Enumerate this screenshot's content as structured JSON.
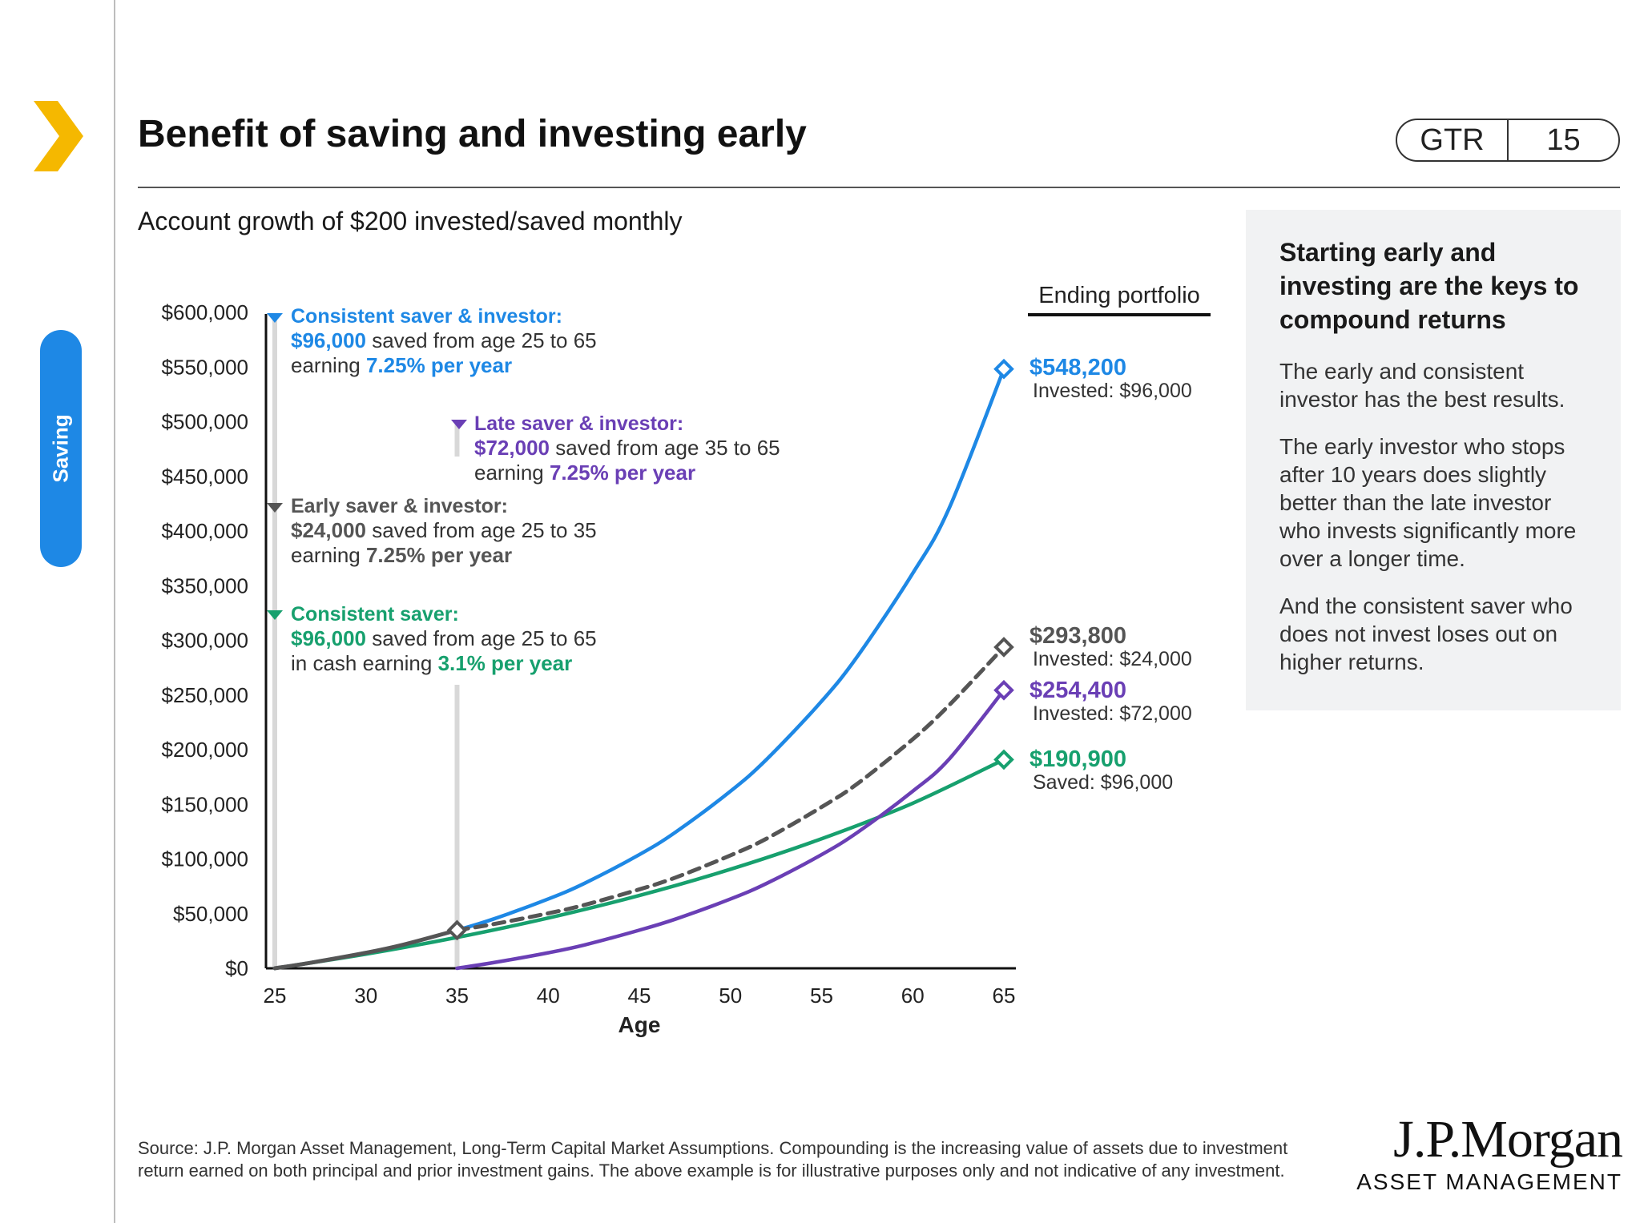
{
  "header": {
    "title": "Benefit of saving and investing early",
    "badge_left": "GTR",
    "badge_right": "15",
    "side_tab": "Saving"
  },
  "colors": {
    "blue": "#1e88e5",
    "gray": "#555555",
    "purple": "#6a3fb5",
    "green": "#17a06e",
    "brand_yellow": "#f5b800"
  },
  "chart_data": {
    "type": "line",
    "title": "Account growth of $200 invested/saved monthly",
    "xlabel": "Age",
    "ylabel": "",
    "xlim": [
      25,
      65
    ],
    "ylim": [
      0,
      600000
    ],
    "x_ticks": [
      "25",
      "30",
      "35",
      "40",
      "45",
      "50",
      "55",
      "60",
      "65"
    ],
    "y_ticks": [
      "$0",
      "$50,000",
      "$100,000",
      "$150,000",
      "$200,000",
      "$250,000",
      "$300,000",
      "$350,000",
      "$400,000",
      "$450,000",
      "$500,000",
      "$550,000",
      "$600,000"
    ],
    "ending_portfolio_header": "Ending portfolio",
    "series": [
      {
        "key": "blue",
        "dashed": false,
        "x": [
          25,
          27,
          30,
          32,
          35,
          37,
          40,
          42,
          45,
          47,
          50,
          52,
          55,
          57,
          60,
          62,
          65
        ],
        "y": [
          0,
          5200,
          14200,
          21400,
          34900,
          45100,
          63400,
          77800,
          104000,
          124700,
          162000,
          191400,
          244300,
          286100,
          361300,
          420900,
          548200
        ],
        "ending_value": "$548,200",
        "ending_note": "Invested: $96,000",
        "annotation": {
          "title": "Consistent saver & investor:",
          "amount": "$96,000",
          "text1": "saved from age 25 to 65",
          "text2": "earning",
          "rate": "7.25% per year"
        }
      },
      {
        "key": "gray",
        "dashed": true,
        "x": [
          35,
          37,
          40,
          42,
          45,
          47,
          50,
          52,
          55,
          57,
          60,
          62,
          65
        ],
        "y": [
          34900,
          40400,
          50300,
          58000,
          72200,
          83100,
          103300,
          118800,
          147500,
          169300,
          209500,
          240700,
          293800
        ],
        "ending_value": "$293,800",
        "ending_note": "Invested: $24,000",
        "annotation": {
          "title": "Early saver & investor:",
          "amount": "$24,000",
          "text1": "saved from age 25 to 35",
          "text2": "earning",
          "rate": "7.25% per year"
        }
      },
      {
        "key": "purple",
        "dashed": false,
        "x": [
          35,
          37,
          40,
          42,
          45,
          47,
          50,
          52,
          55,
          57,
          60,
          62,
          65
        ],
        "y": [
          0,
          5200,
          14200,
          21400,
          34900,
          45100,
          63400,
          77800,
          104000,
          124700,
          162000,
          191400,
          254400
        ],
        "ending_value": "$254,400",
        "ending_note": "Invested: $72,000",
        "annotation": {
          "title": "Late saver & investor:",
          "amount": "$72,000",
          "text1": "saved from age 35 to 65",
          "text2": "earning",
          "rate": "7.25% per year"
        }
      },
      {
        "key": "green",
        "dashed": false,
        "x": [
          25,
          30,
          35,
          40,
          45,
          50,
          55,
          60,
          65
        ],
        "y": [
          0,
          13000,
          28300,
          46000,
          66600,
          90600,
          118500,
          151000,
          190900
        ],
        "ending_value": "$190,900",
        "ending_note": "Saved: $96,000",
        "annotation": {
          "title": "Consistent saver:",
          "amount": "$96,000",
          "text1": "saved from age 25 to 65",
          "text2": "in cash earning",
          "rate": "3.1% per year"
        }
      }
    ]
  },
  "sidebar": {
    "heading": "Starting early and investing are the keys to compound returns",
    "p1": "The early and consistent investor has the best results.",
    "p2": "The early investor who stops after 10 years does slightly better than the late investor who invests significantly more over a longer time.",
    "p3": "And the consistent saver who does not invest loses out on higher returns."
  },
  "footer": {
    "source": "Source: J.P. Morgan Asset Management, Long-Term Capital Market Assumptions. Compounding is the increasing value of assets due to investment return earned on both principal and prior investment gains. The above example is for illustrative purposes only and not indicative of any investment.",
    "logo_line1": "J.P.Morgan",
    "logo_line2": "ASSET MANAGEMENT"
  }
}
